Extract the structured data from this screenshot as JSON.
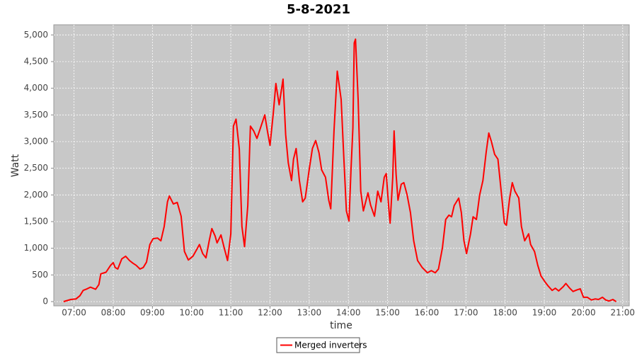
{
  "chart_data": {
    "type": "line",
    "title": "5-8-2021",
    "x_label": "time",
    "y_label": "Watt",
    "x": [
      "06:44",
      "06:55",
      "07:03",
      "07:09",
      "07:14",
      "07:20",
      "07:25",
      "07:33",
      "07:38",
      "07:41",
      "07:49",
      "07:56",
      "08:00",
      "08:03",
      "08:07",
      "08:13",
      "08:19",
      "08:25",
      "08:30",
      "08:35",
      "08:41",
      "08:46",
      "08:51",
      "08:56",
      "09:01",
      "09:08",
      "09:13",
      "09:18",
      "09:23",
      "09:26",
      "09:32",
      "09:38",
      "09:44",
      "09:49",
      "09:55",
      "10:02",
      "10:08",
      "10:12",
      "10:17",
      "10:22",
      "10:27",
      "10:31",
      "10:36",
      "10:39",
      "10:45",
      "10:50",
      "10:55",
      "11:00",
      "11:04",
      "11:08",
      "11:13",
      "11:17",
      "11:21",
      "11:26",
      "11:30",
      "11:35",
      "11:40",
      "11:45",
      "11:52",
      "11:56",
      "12:00",
      "12:05",
      "12:09",
      "12:14",
      "12:20",
      "12:24",
      "12:28",
      "12:33",
      "12:36",
      "12:40",
      "12:45",
      "12:50",
      "12:54",
      "13:00",
      "13:05",
      "13:10",
      "13:15",
      "13:19",
      "13:25",
      "13:30",
      "13:33",
      "13:38",
      "13:43",
      "13:49",
      "13:53",
      "13:57",
      "14:01",
      "14:04",
      "14:07",
      "14:09",
      "14:11",
      "14:15",
      "14:19",
      "14:23",
      "14:30",
      "14:34",
      "14:40",
      "14:45",
      "14:50",
      "14:55",
      "14:58",
      "15:02",
      "15:04",
      "15:08",
      "15:10",
      "15:13",
      "15:16",
      "15:21",
      "15:25",
      "15:30",
      "15:35",
      "15:40",
      "15:46",
      "15:53",
      "16:01",
      "16:07",
      "16:13",
      "16:18",
      "16:24",
      "16:29",
      "16:34",
      "16:38",
      "16:42",
      "16:49",
      "16:53",
      "16:57",
      "17:01",
      "17:07",
      "17:11",
      "17:16",
      "17:21",
      "17:26",
      "17:31",
      "17:35",
      "17:39",
      "17:44",
      "17:49",
      "17:54",
      "17:59",
      "18:02",
      "18:07",
      "18:11",
      "18:15",
      "18:21",
      "18:25",
      "18:30",
      "18:36",
      "18:39",
      "18:45",
      "18:50",
      "18:55",
      "19:01",
      "19:06",
      "19:12",
      "19:17",
      "19:22",
      "19:29",
      "19:33",
      "19:39",
      "19:44",
      "19:50",
      "19:55",
      "20:00",
      "20:06",
      "20:12",
      "20:18",
      "20:23",
      "20:29",
      "20:34",
      "20:39",
      "20:45",
      "20:50"
    ],
    "series": [
      {
        "name": "Merged inverters",
        "color": "#ff0000",
        "values": [
          0,
          40,
          50,
          110,
          210,
          240,
          270,
          230,
          320,
          520,
          550,
          680,
          730,
          640,
          610,
          800,
          850,
          770,
          720,
          680,
          610,
          640,
          740,
          1070,
          1180,
          1190,
          1140,
          1410,
          1870,
          1980,
          1830,
          1860,
          1600,
          940,
          780,
          850,
          980,
          1070,
          900,
          820,
          1140,
          1370,
          1230,
          1100,
          1250,
          1000,
          770,
          1270,
          3290,
          3420,
          2860,
          1410,
          1030,
          1800,
          3290,
          3200,
          3060,
          3240,
          3500,
          3200,
          2930,
          3530,
          4090,
          3690,
          4170,
          3130,
          2600,
          2270,
          2670,
          2870,
          2270,
          1870,
          1940,
          2470,
          2870,
          3020,
          2790,
          2470,
          2330,
          1900,
          1740,
          3200,
          4320,
          3790,
          2720,
          1700,
          1510,
          2470,
          3260,
          4850,
          4920,
          3790,
          2070,
          1700,
          2040,
          1810,
          1600,
          2070,
          1870,
          2330,
          2400,
          1740,
          1470,
          2330,
          3200,
          2390,
          1900,
          2200,
          2230,
          2000,
          1670,
          1140,
          770,
          640,
          540,
          580,
          540,
          610,
          1010,
          1540,
          1620,
          1590,
          1800,
          1940,
          1670,
          1140,
          900,
          1270,
          1590,
          1540,
          2000,
          2270,
          2800,
          3160,
          3000,
          2760,
          2670,
          2070,
          1470,
          1430,
          1940,
          2230,
          2070,
          1940,
          1410,
          1140,
          1270,
          1070,
          940,
          680,
          480,
          370,
          290,
          210,
          250,
          200,
          280,
          340,
          250,
          190,
          220,
          240,
          80,
          80,
          30,
          50,
          40,
          80,
          30,
          10,
          40,
          0
        ]
      }
    ],
    "xlim": [
      "06:29",
      "21:10"
    ],
    "xticks": [
      "07:00",
      "08:00",
      "09:00",
      "10:00",
      "11:00",
      "12:00",
      "13:00",
      "14:00",
      "15:00",
      "16:00",
      "17:00",
      "18:00",
      "19:00",
      "20:00",
      "21:00"
    ],
    "ylim": [
      -80,
      5190
    ],
    "yticks": [
      0,
      500,
      {
        "value": 1000,
        "label": "1,000"
      },
      {
        "value": 1500,
        "label": "1,500"
      },
      {
        "value": 2000,
        "label": "2,000"
      },
      {
        "value": 2500,
        "label": "2,500"
      },
      {
        "value": 3000,
        "label": "3,000"
      },
      {
        "value": 3500,
        "label": "3,500"
      },
      {
        "value": 4000,
        "label": "4,000"
      },
      {
        "value": 4500,
        "label": "4,500"
      },
      {
        "value": 5000,
        "label": "5,000"
      }
    ],
    "grid": true,
    "legend": "bottom",
    "plot_background": "#c8c8c8"
  }
}
